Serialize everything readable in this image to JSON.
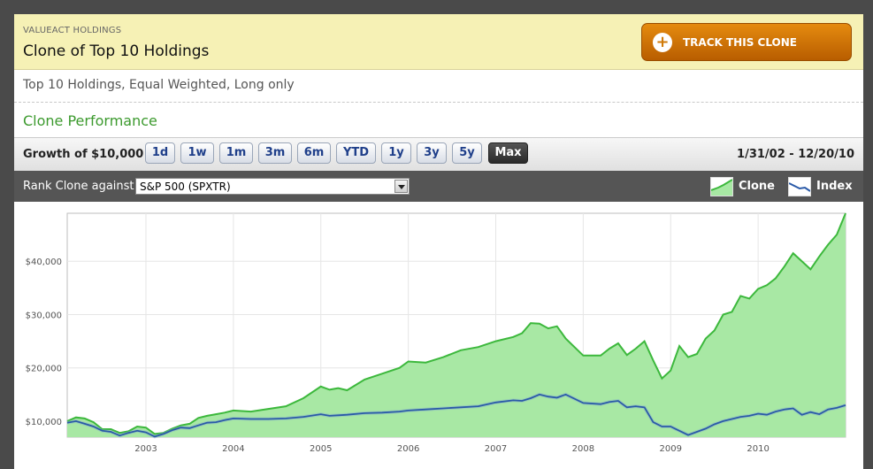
{
  "header": {
    "org": "VALUEACT HOLDINGS",
    "title": "Clone of Top 10 Holdings",
    "track_button": "TRACK THIS CLONE",
    "track_icon": "plus-icon"
  },
  "subtitle": "Top 10 Holdings, Equal Weighted, Long only",
  "section_title": "Clone Performance",
  "toolbar": {
    "growth_label": "Growth of $10,000",
    "ranges": [
      "1d",
      "1w",
      "1m",
      "3m",
      "6m",
      "YTD",
      "1y",
      "3y",
      "5y",
      "Max"
    ],
    "active_range": "Max",
    "date_range": "1/31/02 - 12/20/10"
  },
  "rank": {
    "label": "Rank Clone against",
    "selected": "S&P 500 (SPXTR)"
  },
  "legend": [
    {
      "label": "Clone",
      "color": "#3cb83c",
      "icon": "clone-area-legend-icon"
    },
    {
      "label": "Index",
      "color": "#2a5aa8",
      "icon": "index-line-legend-icon"
    }
  ],
  "chart_data": {
    "type": "area",
    "ylim": [
      7000,
      49000
    ],
    "xlim": [
      2002.1,
      2011.0
    ],
    "y_ticks": [
      {
        "v": 10000,
        "label": "$10,000"
      },
      {
        "v": 20000,
        "label": "$20,000"
      },
      {
        "v": 30000,
        "label": "$30,000"
      },
      {
        "v": 40000,
        "label": "$40,000"
      }
    ],
    "x_ticks": [
      {
        "v": 2003,
        "label": "2003"
      },
      {
        "v": 2004,
        "label": "2004"
      },
      {
        "v": 2005,
        "label": "2005"
      },
      {
        "v": 2006,
        "label": "2006"
      },
      {
        "v": 2007,
        "label": "2007"
      },
      {
        "v": 2008,
        "label": "2008"
      },
      {
        "v": 2009,
        "label": "2009"
      },
      {
        "v": 2010,
        "label": "2010"
      }
    ],
    "grid": true,
    "series": [
      {
        "name": "Clone",
        "color": "#3cb83c",
        "fill": "#a8e8a4",
        "x": [
          2002.1,
          2002.2,
          2002.3,
          2002.4,
          2002.5,
          2002.6,
          2002.7,
          2002.8,
          2002.9,
          2003.0,
          2003.1,
          2003.2,
          2003.3,
          2003.4,
          2003.5,
          2003.6,
          2003.7,
          2003.8,
          2003.9,
          2004.0,
          2004.2,
          2004.4,
          2004.6,
          2004.8,
          2005.0,
          2005.1,
          2005.2,
          2005.3,
          2005.5,
          2005.7,
          2005.9,
          2006.0,
          2006.2,
          2006.4,
          2006.6,
          2006.8,
          2007.0,
          2007.2,
          2007.3,
          2007.4,
          2007.5,
          2007.6,
          2007.7,
          2007.8,
          2008.0,
          2008.2,
          2008.3,
          2008.4,
          2008.5,
          2008.6,
          2008.7,
          2008.8,
          2008.9,
          2009.0,
          2009.1,
          2009.2,
          2009.3,
          2009.4,
          2009.5,
          2009.6,
          2009.7,
          2009.8,
          2009.9,
          2010.0,
          2010.1,
          2010.2,
          2010.3,
          2010.4,
          2010.5,
          2010.6,
          2010.7,
          2010.8,
          2010.9,
          2011.0
        ],
        "y": [
          10000,
          10700,
          10500,
          9800,
          8500,
          8500,
          7800,
          8100,
          9000,
          8800,
          7600,
          7800,
          8600,
          9200,
          9500,
          10600,
          11000,
          11300,
          11600,
          12000,
          11800,
          12300,
          12800,
          14300,
          16500,
          15900,
          16200,
          15800,
          17800,
          18900,
          20000,
          21200,
          21000,
          22000,
          23300,
          23900,
          25000,
          25800,
          26500,
          28400,
          28300,
          27400,
          27800,
          25500,
          22300,
          22300,
          23600,
          24600,
          22400,
          23600,
          25000,
          21400,
          18000,
          19500,
          24100,
          22000,
          22600,
          25500,
          27000,
          30000,
          30500,
          33500,
          33000,
          34800,
          35500,
          36800,
          39000,
          41500,
          40000,
          38500,
          40900,
          43100,
          45000,
          49000
        ]
      },
      {
        "name": "Index",
        "color": "#2a5aa8",
        "x": [
          2002.1,
          2002.2,
          2002.3,
          2002.4,
          2002.5,
          2002.6,
          2002.7,
          2002.8,
          2002.9,
          2003.0,
          2003.1,
          2003.2,
          2003.3,
          2003.4,
          2003.5,
          2003.6,
          2003.7,
          2003.8,
          2003.9,
          2004.0,
          2004.2,
          2004.4,
          2004.6,
          2004.8,
          2005.0,
          2005.1,
          2005.2,
          2005.3,
          2005.5,
          2005.7,
          2005.9,
          2006.0,
          2006.2,
          2006.4,
          2006.6,
          2006.8,
          2007.0,
          2007.2,
          2007.3,
          2007.4,
          2007.5,
          2007.6,
          2007.7,
          2007.8,
          2008.0,
          2008.2,
          2008.3,
          2008.4,
          2008.5,
          2008.6,
          2008.7,
          2008.8,
          2008.9,
          2009.0,
          2009.1,
          2009.2,
          2009.3,
          2009.4,
          2009.5,
          2009.6,
          2009.7,
          2009.8,
          2009.9,
          2010.0,
          2010.1,
          2010.2,
          2010.3,
          2010.4,
          2010.5,
          2010.6,
          2010.7,
          2010.8,
          2010.9,
          2011.0
        ],
        "y": [
          9700,
          10000,
          9500,
          9000,
          8200,
          8000,
          7300,
          7800,
          8200,
          7900,
          7100,
          7600,
          8300,
          8800,
          8700,
          9200,
          9700,
          9800,
          10200,
          10500,
          10400,
          10400,
          10500,
          10800,
          11300,
          11000,
          11100,
          11200,
          11500,
          11600,
          11800,
          12000,
          12200,
          12400,
          12600,
          12800,
          13500,
          13900,
          13800,
          14300,
          15000,
          14600,
          14400,
          15000,
          13400,
          13200,
          13600,
          13800,
          12600,
          12800,
          12600,
          9800,
          9000,
          9000,
          8200,
          7400,
          8000,
          8600,
          9400,
          10000,
          10400,
          10800,
          11000,
          11400,
          11200,
          11800,
          12200,
          12400,
          11200,
          11700,
          11300,
          12200,
          12500,
          13000
        ]
      }
    ]
  }
}
